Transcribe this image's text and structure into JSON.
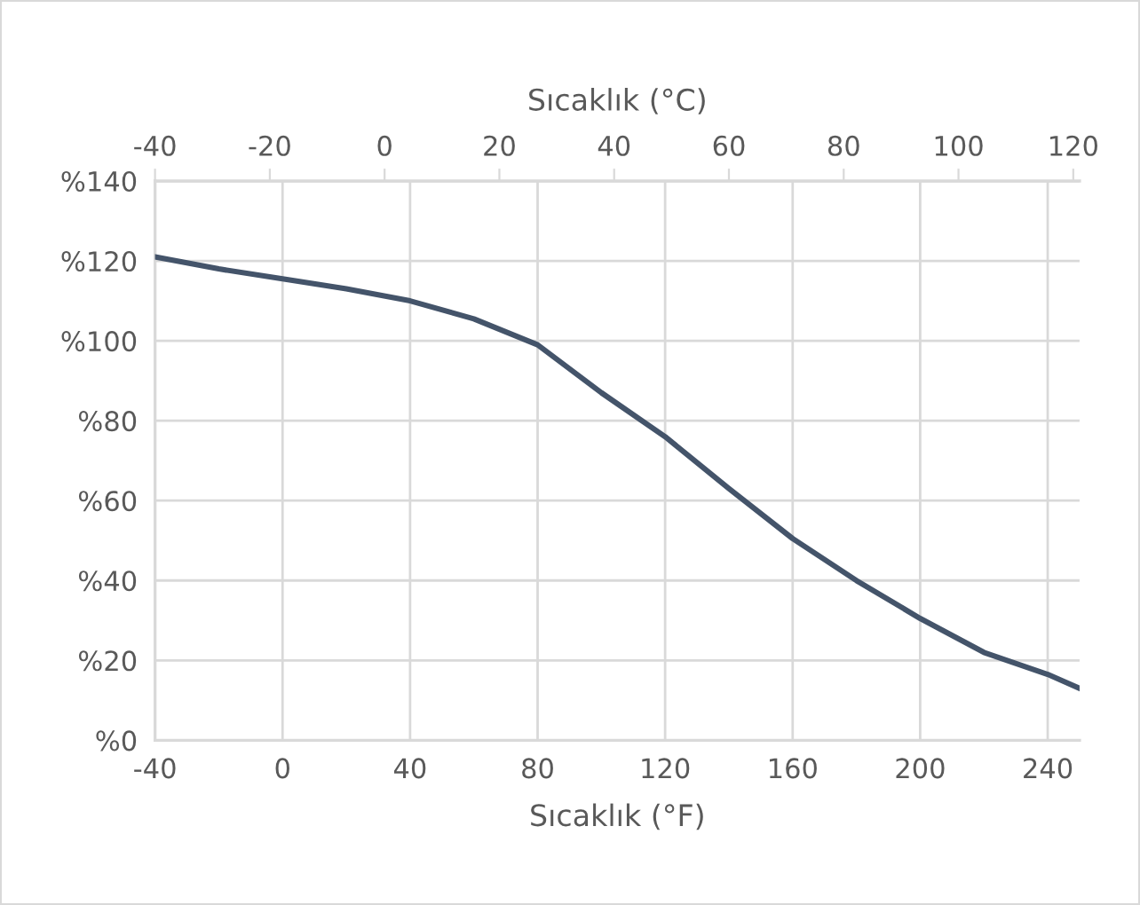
{
  "chart_data": {
    "type": "line",
    "xlabel": "Sıcaklık (°F)",
    "x2label": "Sıcaklık (°C)",
    "x": [
      -40,
      -20,
      0,
      20,
      40,
      60,
      80,
      100,
      120,
      140,
      160,
      180,
      200,
      220,
      240,
      250
    ],
    "series": [
      {
        "color": "#44546a",
        "values": [
          121,
          118,
          115.5,
          113,
          110,
          105.5,
          99,
          87,
          76,
          63,
          50.5,
          40,
          30.5,
          22,
          16.5,
          13
        ]
      }
    ],
    "xlim": [
      -40,
      250
    ],
    "xticks": [
      -40,
      0,
      40,
      80,
      120,
      160,
      200,
      240
    ],
    "x2lim": [
      -40,
      121.1
    ],
    "x2ticks": [
      -40,
      -20,
      0,
      20,
      40,
      60,
      80,
      100,
      120
    ],
    "ylim": [
      0,
      140
    ],
    "yticks": [
      {
        "value": 0,
        "label": "%0"
      },
      {
        "value": 20,
        "label": "%20"
      },
      {
        "value": 40,
        "label": "%40"
      },
      {
        "value": 60,
        "label": "%60"
      },
      {
        "value": 80,
        "label": "%80"
      },
      {
        "value": 100,
        "label": "%100"
      },
      {
        "value": 120,
        "label": "%120"
      },
      {
        "value": 140,
        "label": "%140"
      }
    ],
    "grid": true,
    "marker": "none",
    "line_style": "solid"
  }
}
